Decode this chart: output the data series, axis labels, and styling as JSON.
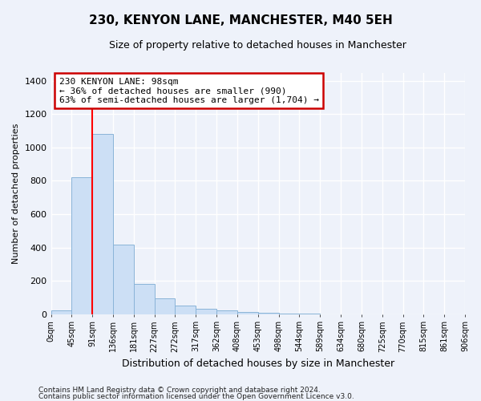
{
  "title": "230, KENYON LANE, MANCHESTER, M40 5EH",
  "subtitle": "Size of property relative to detached houses in Manchester",
  "xlabel": "Distribution of detached houses by size in Manchester",
  "ylabel": "Number of detached properties",
  "bar_color": "#ccdff5",
  "bar_edge_color": "#8ab4d8",
  "bar_values": [
    20,
    820,
    1080,
    415,
    180,
    95,
    50,
    30,
    20,
    10,
    5,
    2,
    1,
    0,
    0,
    0,
    0,
    0,
    0,
    0
  ],
  "bin_labels": [
    "0sqm",
    "45sqm",
    "91sqm",
    "136sqm",
    "181sqm",
    "227sqm",
    "272sqm",
    "317sqm",
    "362sqm",
    "408sqm",
    "453sqm",
    "498sqm",
    "544sqm",
    "589sqm",
    "634sqm",
    "680sqm",
    "725sqm",
    "770sqm",
    "815sqm",
    "861sqm",
    "906sqm"
  ],
  "ylim": [
    0,
    1450
  ],
  "yticks": [
    0,
    200,
    400,
    600,
    800,
    1000,
    1200,
    1400
  ],
  "red_line_x": 2,
  "annotation_line1": "230 KENYON LANE: 98sqm",
  "annotation_line2": "← 36% of detached houses are smaller (990)",
  "annotation_line3": "63% of semi-detached houses are larger (1,704) →",
  "annotation_box_color": "#ffffff",
  "annotation_box_edge_color": "#cc0000",
  "footer_line1": "Contains HM Land Registry data © Crown copyright and database right 2024.",
  "footer_line2": "Contains public sector information licensed under the Open Government Licence v3.0.",
  "background_color": "#eef2fa",
  "grid_color": "#ffffff"
}
